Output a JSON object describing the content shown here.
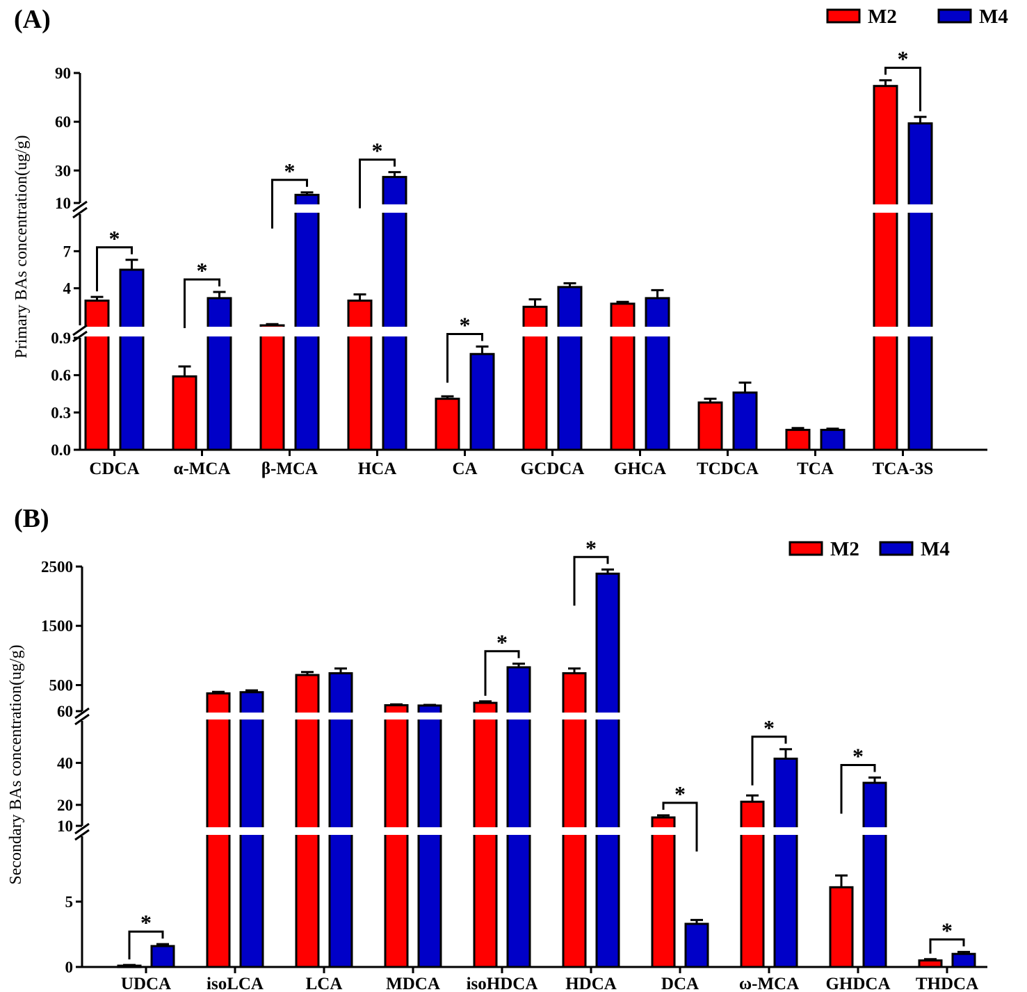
{
  "colors": {
    "m2": "#ff0000",
    "m4": "#0000c8",
    "axis": "#000000"
  },
  "chart_data": [
    {
      "type": "bar",
      "panel": "(A)",
      "ylabel": "Primary BAs concentration(ug/g)",
      "legend": [
        "M2",
        "M4"
      ],
      "legend_position": "top-right",
      "categories": [
        "CDCA",
        "α-MCA",
        "β-MCA",
        "HCA",
        "CA",
        "GCDCA",
        "GHCA",
        "TCDCA",
        "TCA",
        "TCA-3S"
      ],
      "series": [
        {
          "name": "M2",
          "values": [
            3.0,
            0.59,
            1.0,
            3.0,
            0.41,
            2.5,
            2.75,
            0.38,
            0.16,
            82
          ],
          "errors": [
            0.3,
            0.08,
            0.1,
            0.5,
            0.02,
            0.6,
            0.15,
            0.03,
            0.015,
            3.5
          ]
        },
        {
          "name": "M4",
          "values": [
            5.5,
            3.2,
            15,
            26,
            0.77,
            4.1,
            3.2,
            0.46,
            0.16,
            59
          ],
          "errors": [
            0.8,
            0.5,
            1.5,
            3,
            0.06,
            0.3,
            0.65,
            0.08,
            0.01,
            4
          ]
        }
      ],
      "significance": [
        {
          "category": "CDCA",
          "label": "*"
        },
        {
          "category": "α-MCA",
          "label": "*"
        },
        {
          "category": "β-MCA",
          "label": "*"
        },
        {
          "category": "HCA",
          "label": "*"
        },
        {
          "category": "CA",
          "label": "*"
        },
        {
          "category": "TCA-3S",
          "label": "*"
        }
      ],
      "segments": [
        {
          "ylim": [
            0,
            0.9
          ],
          "ticks": [
            "0.0",
            "0.3",
            "0.6",
            "0.9"
          ]
        },
        {
          "ylim": [
            1,
            10
          ],
          "ticks": [
            "4",
            "7",
            "10"
          ]
        },
        {
          "ylim": [
            10,
            90
          ],
          "ticks": [
            "30",
            "60",
            "90"
          ]
        }
      ]
    },
    {
      "type": "bar",
      "panel": "(B)",
      "ylabel": "Secondary BAs  concentration(ug/g)",
      "legend": [
        "M2",
        "M4"
      ],
      "legend_position": "top-right",
      "categories": [
        "UDCA",
        "isoLCA",
        "LCA",
        "MDCA",
        "isoHDCA",
        "HDCA",
        "DCA",
        "ω-MCA",
        "GHDCA",
        "THDCA"
      ],
      "series": [
        {
          "name": "M2",
          "values": [
            0.1,
            360,
            670,
            160,
            200,
            700,
            14,
            21.5,
            6.1,
            0.5
          ],
          "errors": [
            0.05,
            25,
            50,
            15,
            25,
            80,
            1,
            3,
            0.9,
            0.1
          ]
        },
        {
          "name": "M4",
          "values": [
            1.6,
            380,
            700,
            155,
            800,
            2380,
            3.3,
            42,
            30.5,
            1.0
          ],
          "errors": [
            0.15,
            30,
            80,
            10,
            60,
            70,
            0.3,
            4.5,
            2.5,
            0.15
          ]
        }
      ],
      "significance": [
        {
          "category": "UDCA",
          "label": "*"
        },
        {
          "category": "isoHDCA",
          "label": "*"
        },
        {
          "category": "HDCA",
          "label": "*"
        },
        {
          "category": "DCA",
          "label": "*"
        },
        {
          "category": "ω-MCA",
          "label": "*"
        },
        {
          "category": "GHDCA",
          "label": "*"
        },
        {
          "category": "THDCA",
          "label": "*"
        }
      ],
      "segments": [
        {
          "ylim": [
            0,
            10
          ],
          "ticks": [
            "0",
            "5",
            "10"
          ]
        },
        {
          "ylim": [
            10,
            60
          ],
          "ticks": [
            "20",
            "40",
            "60"
          ]
        },
        {
          "ylim": [
            60,
            2500
          ],
          "ticks": [
            "500",
            "1500",
            "2500"
          ]
        }
      ]
    }
  ]
}
